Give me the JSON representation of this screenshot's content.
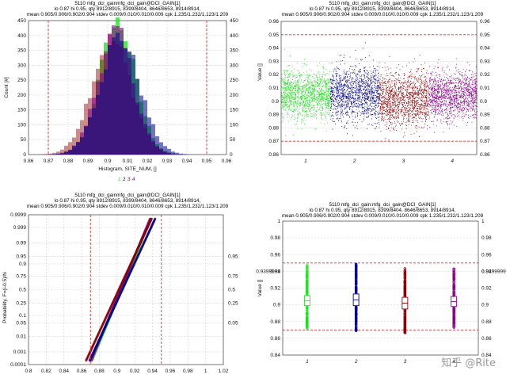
{
  "colors": {
    "s1": "#22dd22",
    "s2": "#00008b",
    "s3": "#8b0000",
    "s4": "#8b008b",
    "limit": "#e03030",
    "grid": "#d0d0d0"
  },
  "watermark": "知乎 @Rite",
  "chart_data": [
    {
      "type": "histogram",
      "header": [
        "5110 mfg_dci_gainmfg_dci_gain@DCI_GAIN[1]",
        "lo 0.87 hi 0.95,  qty 8912/8915, 8399/8404, 8646/8653, 8914/8914,",
        "mean 0.905/0.906/0.902/0.904 stdev 0.009/0.010/0.010/0.009 cpk 1.235/1.232/1.123/1.209"
      ],
      "xlabel": "Histogram, SITE_NUM, []",
      "ylabel": "Count [#]",
      "xlim": [
        0.86,
        0.96
      ],
      "ylim": [
        0,
        450
      ],
      "xticks": [
        "0.86",
        "0.87",
        "0.88",
        "0.89",
        "0.9",
        "0.91",
        "0.92",
        "0.93",
        "0.94",
        "0.95",
        "0.96"
      ],
      "yticks": [
        "0",
        "50",
        "100",
        "150",
        "200",
        "250",
        "300",
        "350",
        "400",
        "450"
      ],
      "limits": [
        0.87,
        0.95
      ],
      "legend": [
        "1",
        "2",
        "3",
        "4"
      ],
      "series": [
        {
          "name": "1",
          "mean": 0.905,
          "stdev": 0.009,
          "peak": 440
        },
        {
          "name": "2",
          "mean": 0.906,
          "stdev": 0.01,
          "peak": 395
        },
        {
          "name": "3",
          "mean": 0.902,
          "stdev": 0.01,
          "peak": 385
        },
        {
          "name": "4",
          "mean": 0.904,
          "stdev": 0.009,
          "peak": 410
        }
      ]
    },
    {
      "type": "scatter",
      "header": [
        "5110 mfg_dci_gain:mfg_dci_gain@DCI_GAIN[1]",
        "lo 0.87 hi 0.95,  qty 8912/8915, 8399/8404, 8646/8653, 8914/8914,",
        "mean 0.905/0.906/0.902/0.904 stdev 0.009/0.010/0.010/0.009 cpk 1.235/1.232/1.123/1.209"
      ],
      "ylabel": "Value []",
      "ylim": [
        0.86,
        0.96
      ],
      "yticks": [
        "0.86",
        "0.87",
        "0.88",
        "0.89",
        "0.9",
        "0.91",
        "0.92",
        "0.93",
        "0.94",
        "0.95",
        "0.96"
      ],
      "xticks": [
        "1",
        "2",
        "3",
        "4"
      ],
      "limits": [
        0.87,
        0.95
      ],
      "series": [
        {
          "name": "1",
          "mean": 0.905,
          "stdev": 0.009
        },
        {
          "name": "2",
          "mean": 0.906,
          "stdev": 0.01
        },
        {
          "name": "3",
          "mean": 0.902,
          "stdev": 0.01
        },
        {
          "name": "4",
          "mean": 0.904,
          "stdev": 0.009
        }
      ]
    },
    {
      "type": "probability",
      "header": [
        "5110 mfg_dci_gainmfg_dci_gain@DCI_GAIN[1]",
        "lo 0.87 hi 0.95,  qty 8912/8915, 8399/8404, 8646/8653, 8914/8914,",
        "mean 0.905/0.906/0.902/0.904 stdev 0.009/0.010/0.010/0.009 cpk 1.235/1.232/1.123/1.209"
      ],
      "ylabel": "Probability, F=(i-0.5)/N",
      "xlim": [
        0.8,
        1.02
      ],
      "xticks": [
        "0.8",
        "0.82",
        "0.84",
        "0.86",
        "0.88",
        "0.9",
        "0.92",
        "0.94",
        "0.96",
        "0.98",
        "1",
        "1.02"
      ],
      "yticks_left": [
        "0.0001",
        "0.001",
        "0.01",
        "0.05",
        "0.1",
        "0.25",
        "0.5",
        "0.75",
        "0.9",
        "0.95",
        "0.99",
        "0.999",
        "0.9999"
      ],
      "yticks_right": [
        "0.95",
        "0.75",
        "0.5",
        "0.25",
        "0.05"
      ],
      "limits": [
        0.87,
        0.95
      ]
    },
    {
      "type": "boxplot",
      "header": [
        "5110 mfg_dci_gain:mfg_dci_gain@DCI_GAIN[1]",
        "lo 0.87 hi 0.95,  qty 8912/8915, 8399/8404, 8646/8653, 8914/8914,",
        "mean 0.905/0.906/0.902/0.904 stdev 0.009/0.010/0.010/0.009 cpk 1.235/1.232/1.123/1.209"
      ],
      "ylabel": "Value []",
      "ylim": [
        0.84,
        1.0
      ],
      "yticks": [
        "0.84",
        "0.86",
        "0.88",
        "0.9",
        "0.92",
        "0.94",
        "0.96",
        "0.98",
        "1"
      ],
      "yticks_extra": "0.9399999",
      "xticks": [
        "1",
        "2",
        "3",
        "4"
      ],
      "limits": [
        0.87,
        0.95
      ],
      "boxes": [
        {
          "name": "1",
          "q1": 0.899,
          "median": 0.905,
          "q3": 0.911,
          "wlo": 0.872,
          "whi": 0.948
        },
        {
          "name": "2",
          "q1": 0.899,
          "median": 0.906,
          "q3": 0.913,
          "wlo": 0.869,
          "whi": 0.949
        },
        {
          "name": "3",
          "q1": 0.895,
          "median": 0.902,
          "q3": 0.909,
          "wlo": 0.866,
          "whi": 0.944
        },
        {
          "name": "4",
          "q1": 0.898,
          "median": 0.904,
          "q3": 0.91,
          "wlo": 0.872,
          "whi": 0.944
        }
      ]
    }
  ]
}
